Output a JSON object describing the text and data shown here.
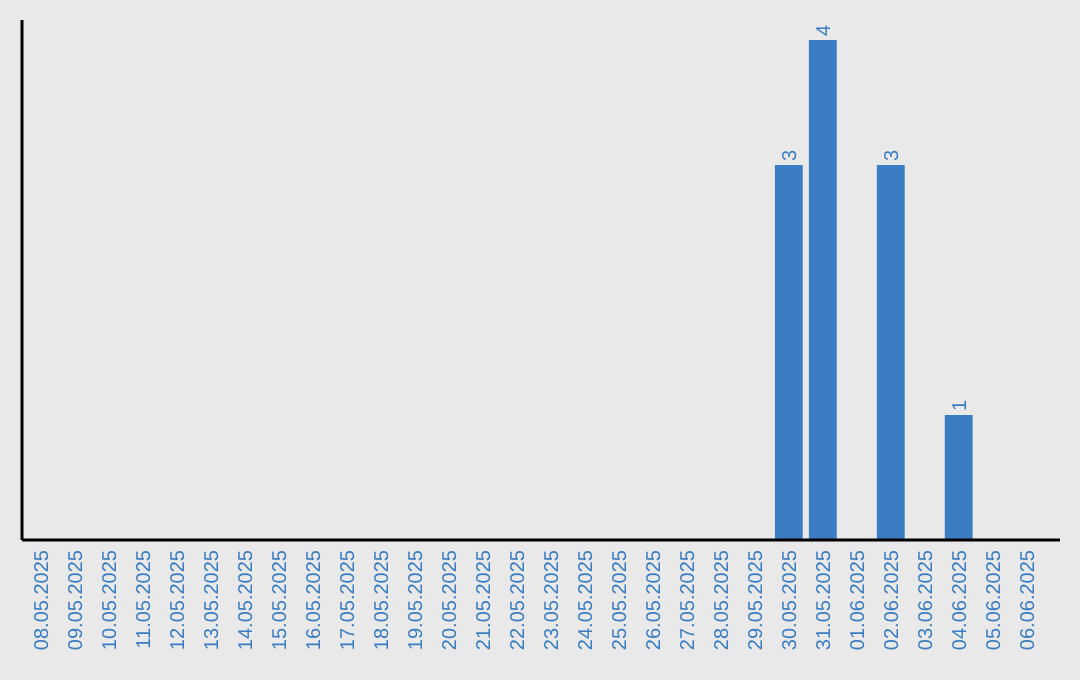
{
  "chart_data": {
    "type": "bar",
    "categories": [
      "08.05.2025",
      "09.05.2025",
      "10.05.2025",
      "11.05.2025",
      "12.05.2025",
      "13.05.2025",
      "14.05.2025",
      "15.05.2025",
      "16.05.2025",
      "17.05.2025",
      "18.05.2025",
      "19.05.2025",
      "20.05.2025",
      "21.05.2025",
      "22.05.2025",
      "23.05.2025",
      "24.05.2025",
      "25.05.2025",
      "26.05.2025",
      "27.05.2025",
      "28.05.2025",
      "29.05.2025",
      "30.05.2025",
      "31.05.2025",
      "01.06.2025",
      "02.06.2025",
      "03.06.2025",
      "04.06.2025",
      "05.06.2025",
      "06.06.2025"
    ],
    "values": [
      null,
      null,
      null,
      null,
      null,
      null,
      null,
      null,
      null,
      null,
      null,
      null,
      null,
      null,
      null,
      null,
      null,
      null,
      null,
      null,
      null,
      null,
      3,
      4,
      null,
      3,
      null,
      1,
      null,
      null
    ],
    "data_labels": true,
    "color": "#3a7dc2",
    "tick_labels": "x"
  }
}
